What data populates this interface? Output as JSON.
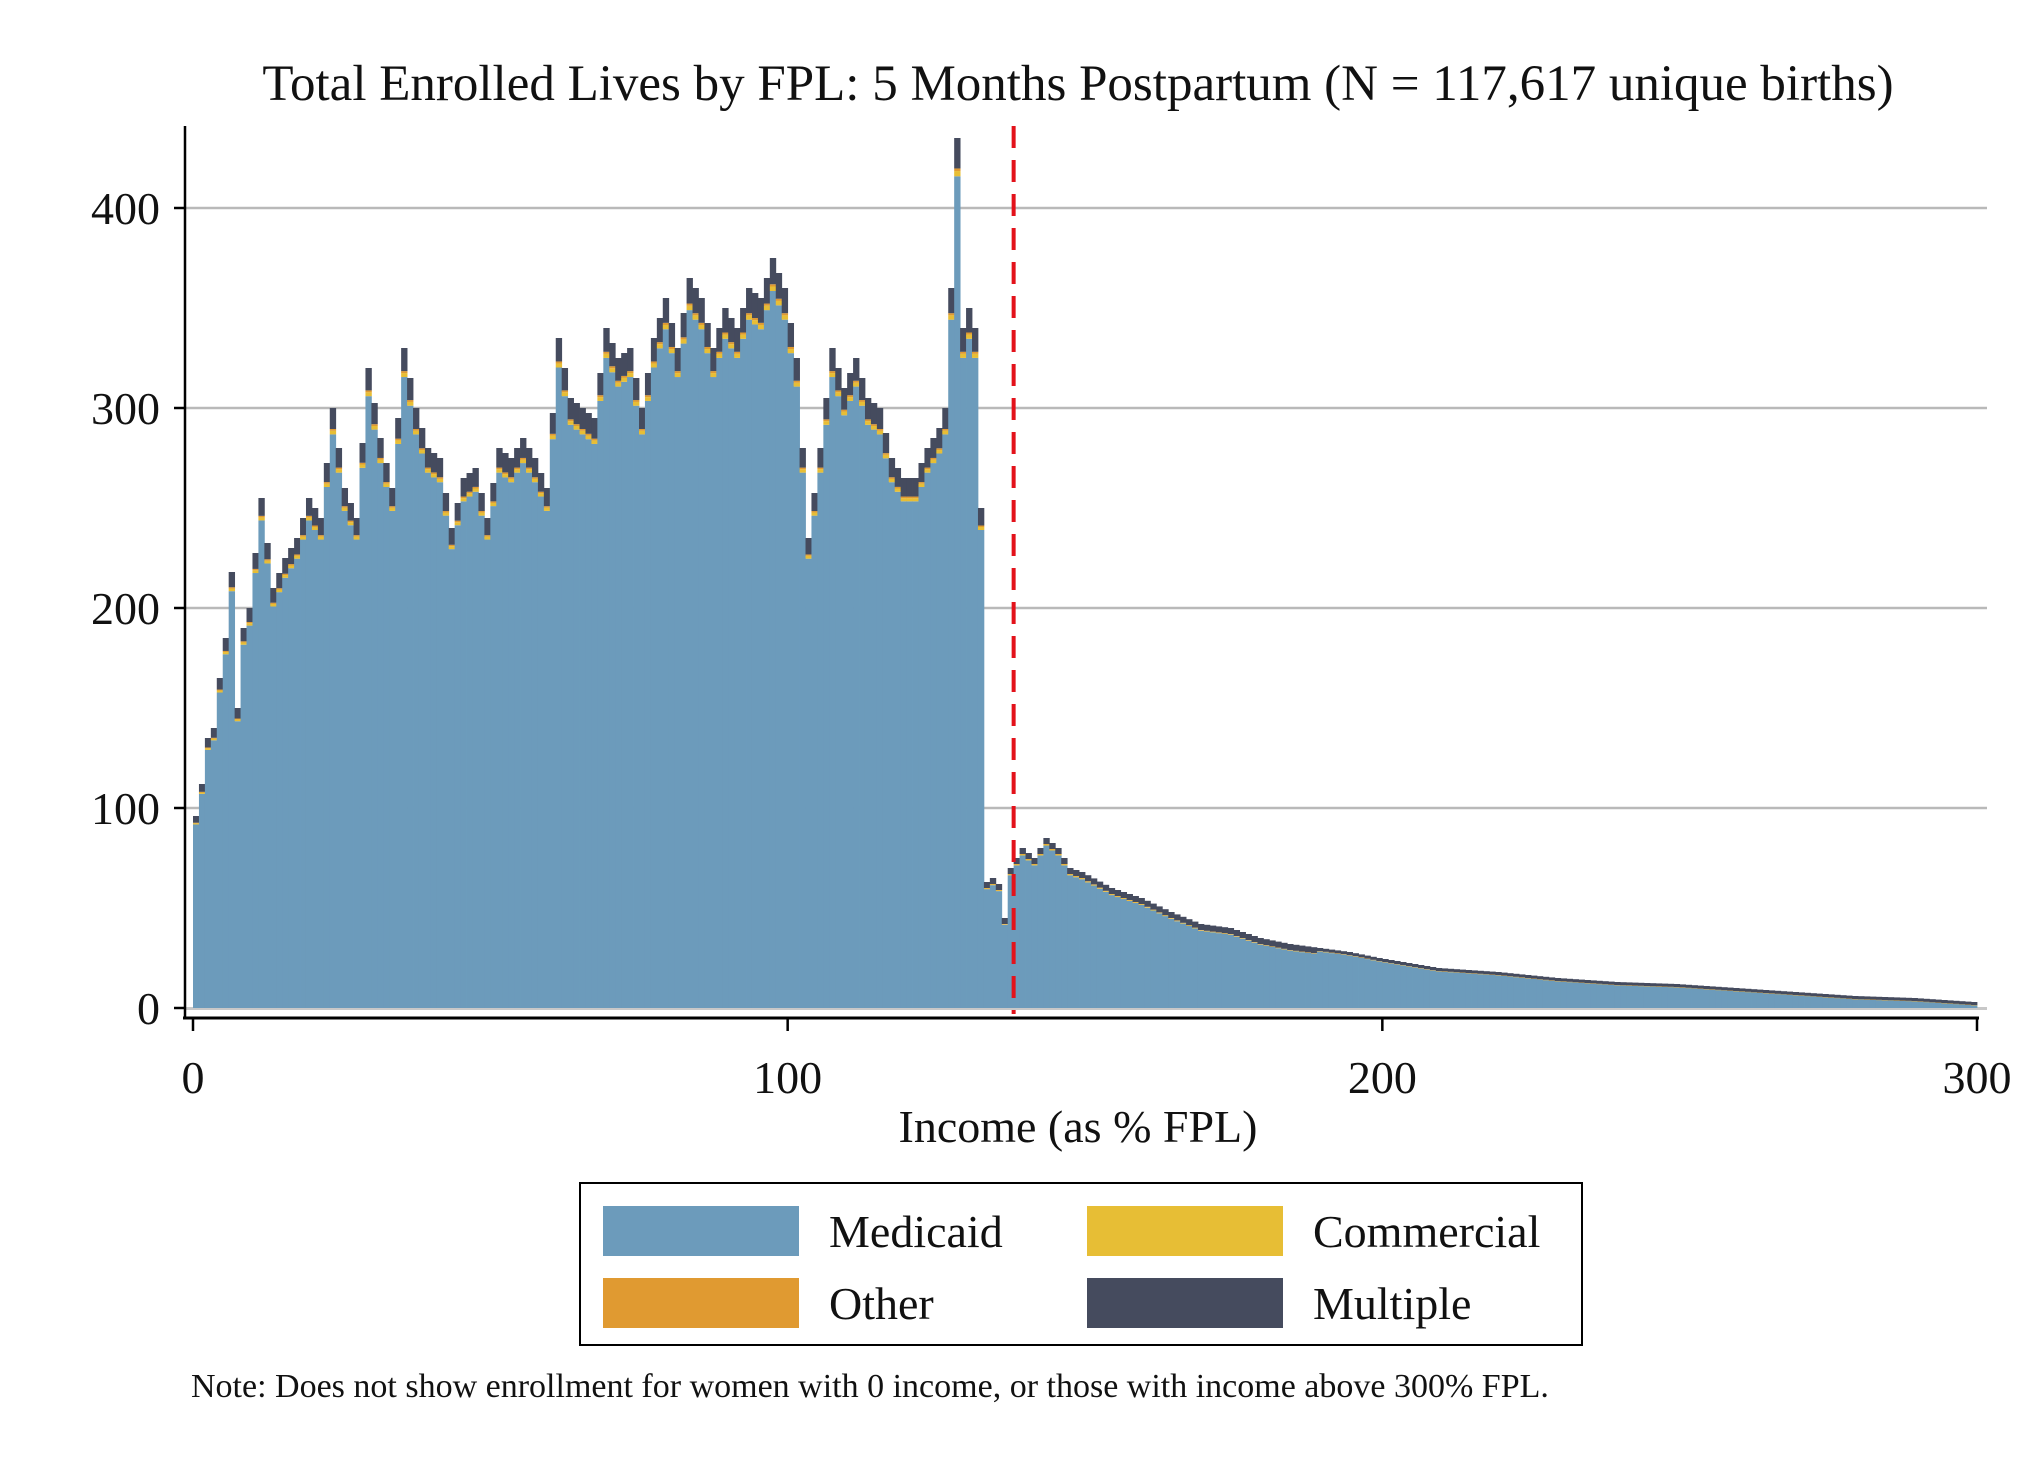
{
  "chart_data": {
    "type": "bar",
    "stacked": true,
    "title": "Total Enrolled Lives by FPL: 5 Months Postpartum (N = 117,617 unique births)",
    "xlabel": "Income (as % FPL)",
    "ylabel": "",
    "xlim": [
      0,
      300
    ],
    "ylim": [
      0,
      430
    ],
    "x_ticks": [
      0,
      100,
      200,
      300
    ],
    "y_ticks": [
      0,
      100,
      200,
      300,
      400
    ],
    "grid": "horizontal",
    "threshold_line": {
      "x": 138,
      "style": "dashed",
      "color": "#e3121b"
    },
    "bin_width": 1,
    "legend": {
      "placement": "bottom",
      "entries": [
        {
          "name": "Medicaid",
          "color": "#6c9bbb"
        },
        {
          "name": "Commercial",
          "color": "#e7be35"
        },
        {
          "name": "Other",
          "color": "#e09a31"
        },
        {
          "name": "Multiple",
          "color": "#454b5e"
        }
      ]
    },
    "key_points": {
      "x": [
        1,
        2,
        3,
        4,
        5,
        6,
        7,
        8,
        9,
        10,
        12,
        14,
        16,
        18,
        20,
        22,
        24,
        26,
        28,
        30,
        32,
        34,
        36,
        38,
        40,
        42,
        44,
        46,
        48,
        50,
        52,
        54,
        56,
        58,
        60,
        62,
        64,
        66,
        68,
        70,
        72,
        74,
        76,
        78,
        80,
        82,
        84,
        86,
        88,
        90,
        92,
        94,
        96,
        98,
        100,
        102,
        104,
        106,
        108,
        110,
        112,
        114,
        116,
        118,
        120,
        122,
        124,
        126,
        127,
        128,
        129,
        130,
        131,
        132,
        133,
        134,
        135,
        136,
        137,
        138,
        139,
        140,
        142,
        144,
        146,
        148,
        150,
        155,
        160,
        165,
        170,
        175,
        180,
        185,
        190,
        195,
        200,
        210,
        220,
        230,
        240,
        250,
        260,
        270,
        280,
        290,
        300
      ],
      "total": [
        96,
        112,
        135,
        140,
        165,
        185,
        218,
        150,
        190,
        200,
        255,
        210,
        225,
        235,
        255,
        245,
        300,
        260,
        245,
        320,
        285,
        260,
        330,
        300,
        280,
        275,
        240,
        265,
        270,
        245,
        280,
        275,
        285,
        275,
        260,
        335,
        305,
        300,
        295,
        340,
        325,
        330,
        300,
        335,
        355,
        330,
        365,
        355,
        330,
        350,
        340,
        360,
        355,
        375,
        360,
        325,
        235,
        280,
        330,
        310,
        325,
        305,
        300,
        275,
        265,
        265,
        280,
        290,
        300,
        360,
        435,
        340,
        350,
        340,
        250,
        63,
        65,
        62,
        45,
        70,
        75,
        80,
        75,
        85,
        80,
        70,
        68,
        60,
        55,
        48,
        42,
        40,
        35,
        32,
        30,
        28,
        25,
        20,
        18,
        15,
        13,
        12,
        10,
        8,
        6,
        5,
        3
      ],
      "multiple_share": 0.035,
      "commercial_share": 0.006,
      "other_share": 0.003
    }
  },
  "note": "Note: Does not show enrollment for women with 0 income, or those with income above 300% FPL."
}
